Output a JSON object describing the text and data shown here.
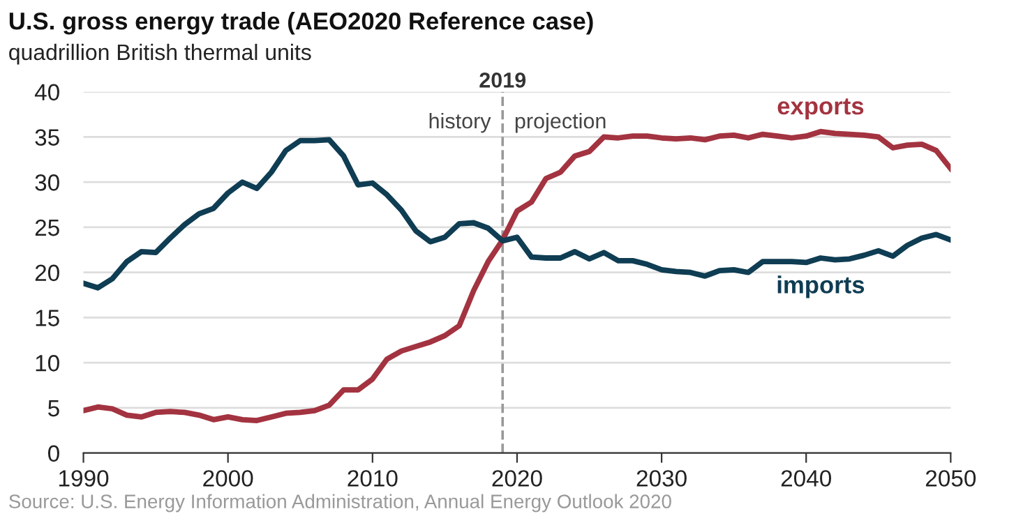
{
  "chart_data": {
    "type": "line",
    "title": "U.S. gross energy trade (AEO2020 Reference case)",
    "subtitle": "quadrillion British thermal units",
    "x": [
      1990,
      1991,
      1992,
      1993,
      1994,
      1995,
      1996,
      1997,
      1998,
      1999,
      2000,
      2001,
      2002,
      2003,
      2004,
      2005,
      2006,
      2007,
      2008,
      2009,
      2010,
      2011,
      2012,
      2013,
      2014,
      2015,
      2016,
      2017,
      2018,
      2019,
      2020,
      2021,
      2022,
      2023,
      2024,
      2025,
      2026,
      2027,
      2028,
      2029,
      2030,
      2031,
      2032,
      2033,
      2034,
      2035,
      2036,
      2037,
      2038,
      2039,
      2040,
      2041,
      2042,
      2043,
      2044,
      2045,
      2046,
      2047,
      2048,
      2049,
      2050
    ],
    "series": [
      {
        "name": "exports",
        "color": "#a33340",
        "values": [
          4.7,
          5.1,
          4.9,
          4.2,
          4.0,
          4.5,
          4.6,
          4.5,
          4.2,
          3.7,
          4.0,
          3.7,
          3.6,
          4.0,
          4.4,
          4.5,
          4.7,
          5.3,
          7.0,
          7.0,
          8.2,
          10.4,
          11.3,
          11.8,
          12.3,
          13.0,
          14.1,
          18.0,
          21.2,
          23.6,
          26.8,
          27.8,
          30.4,
          31.1,
          32.9,
          33.4,
          35.0,
          34.9,
          35.1,
          35.1,
          34.9,
          34.8,
          34.9,
          34.7,
          35.1,
          35.2,
          34.9,
          35.3,
          35.1,
          34.9,
          35.1,
          35.6,
          35.4,
          35.3,
          35.2,
          35.0,
          33.8,
          34.1,
          34.2,
          33.5,
          31.5
        ]
      },
      {
        "name": "imports",
        "color": "#0f3d53",
        "values": [
          18.8,
          18.3,
          19.3,
          21.2,
          22.3,
          22.2,
          23.8,
          25.3,
          26.5,
          27.1,
          28.8,
          30.0,
          29.3,
          31.1,
          33.5,
          34.6,
          34.6,
          34.7,
          32.9,
          29.7,
          29.9,
          28.6,
          26.9,
          24.6,
          23.4,
          23.9,
          25.4,
          25.5,
          24.9,
          23.5,
          23.9,
          21.7,
          21.6,
          21.6,
          22.3,
          21.5,
          22.2,
          21.3,
          21.3,
          20.9,
          20.3,
          20.1,
          20.0,
          19.6,
          20.2,
          20.3,
          20.0,
          21.2,
          21.2,
          21.2,
          21.1,
          21.6,
          21.4,
          21.5,
          21.9,
          22.4,
          21.8,
          23.0,
          23.8,
          24.2,
          23.6
        ]
      }
    ],
    "xlim": [
      1990,
      2050
    ],
    "xticks": [
      1990,
      2000,
      2010,
      2020,
      2030,
      2040,
      2050
    ],
    "ylim": [
      0,
      40
    ],
    "yticks": [
      0,
      5,
      10,
      15,
      20,
      25,
      30,
      35,
      40
    ],
    "grid": "y",
    "legend": false,
    "line_style": "solid",
    "ref_lines": [
      {
        "axis": "x",
        "value": 2019,
        "label": "2019",
        "color": "#999999",
        "line_style": "dashed"
      }
    ],
    "annotations": [
      "history",
      "projection",
      "Source: U.S. Energy Information Administration, Annual Energy Outlook 2020"
    ]
  }
}
